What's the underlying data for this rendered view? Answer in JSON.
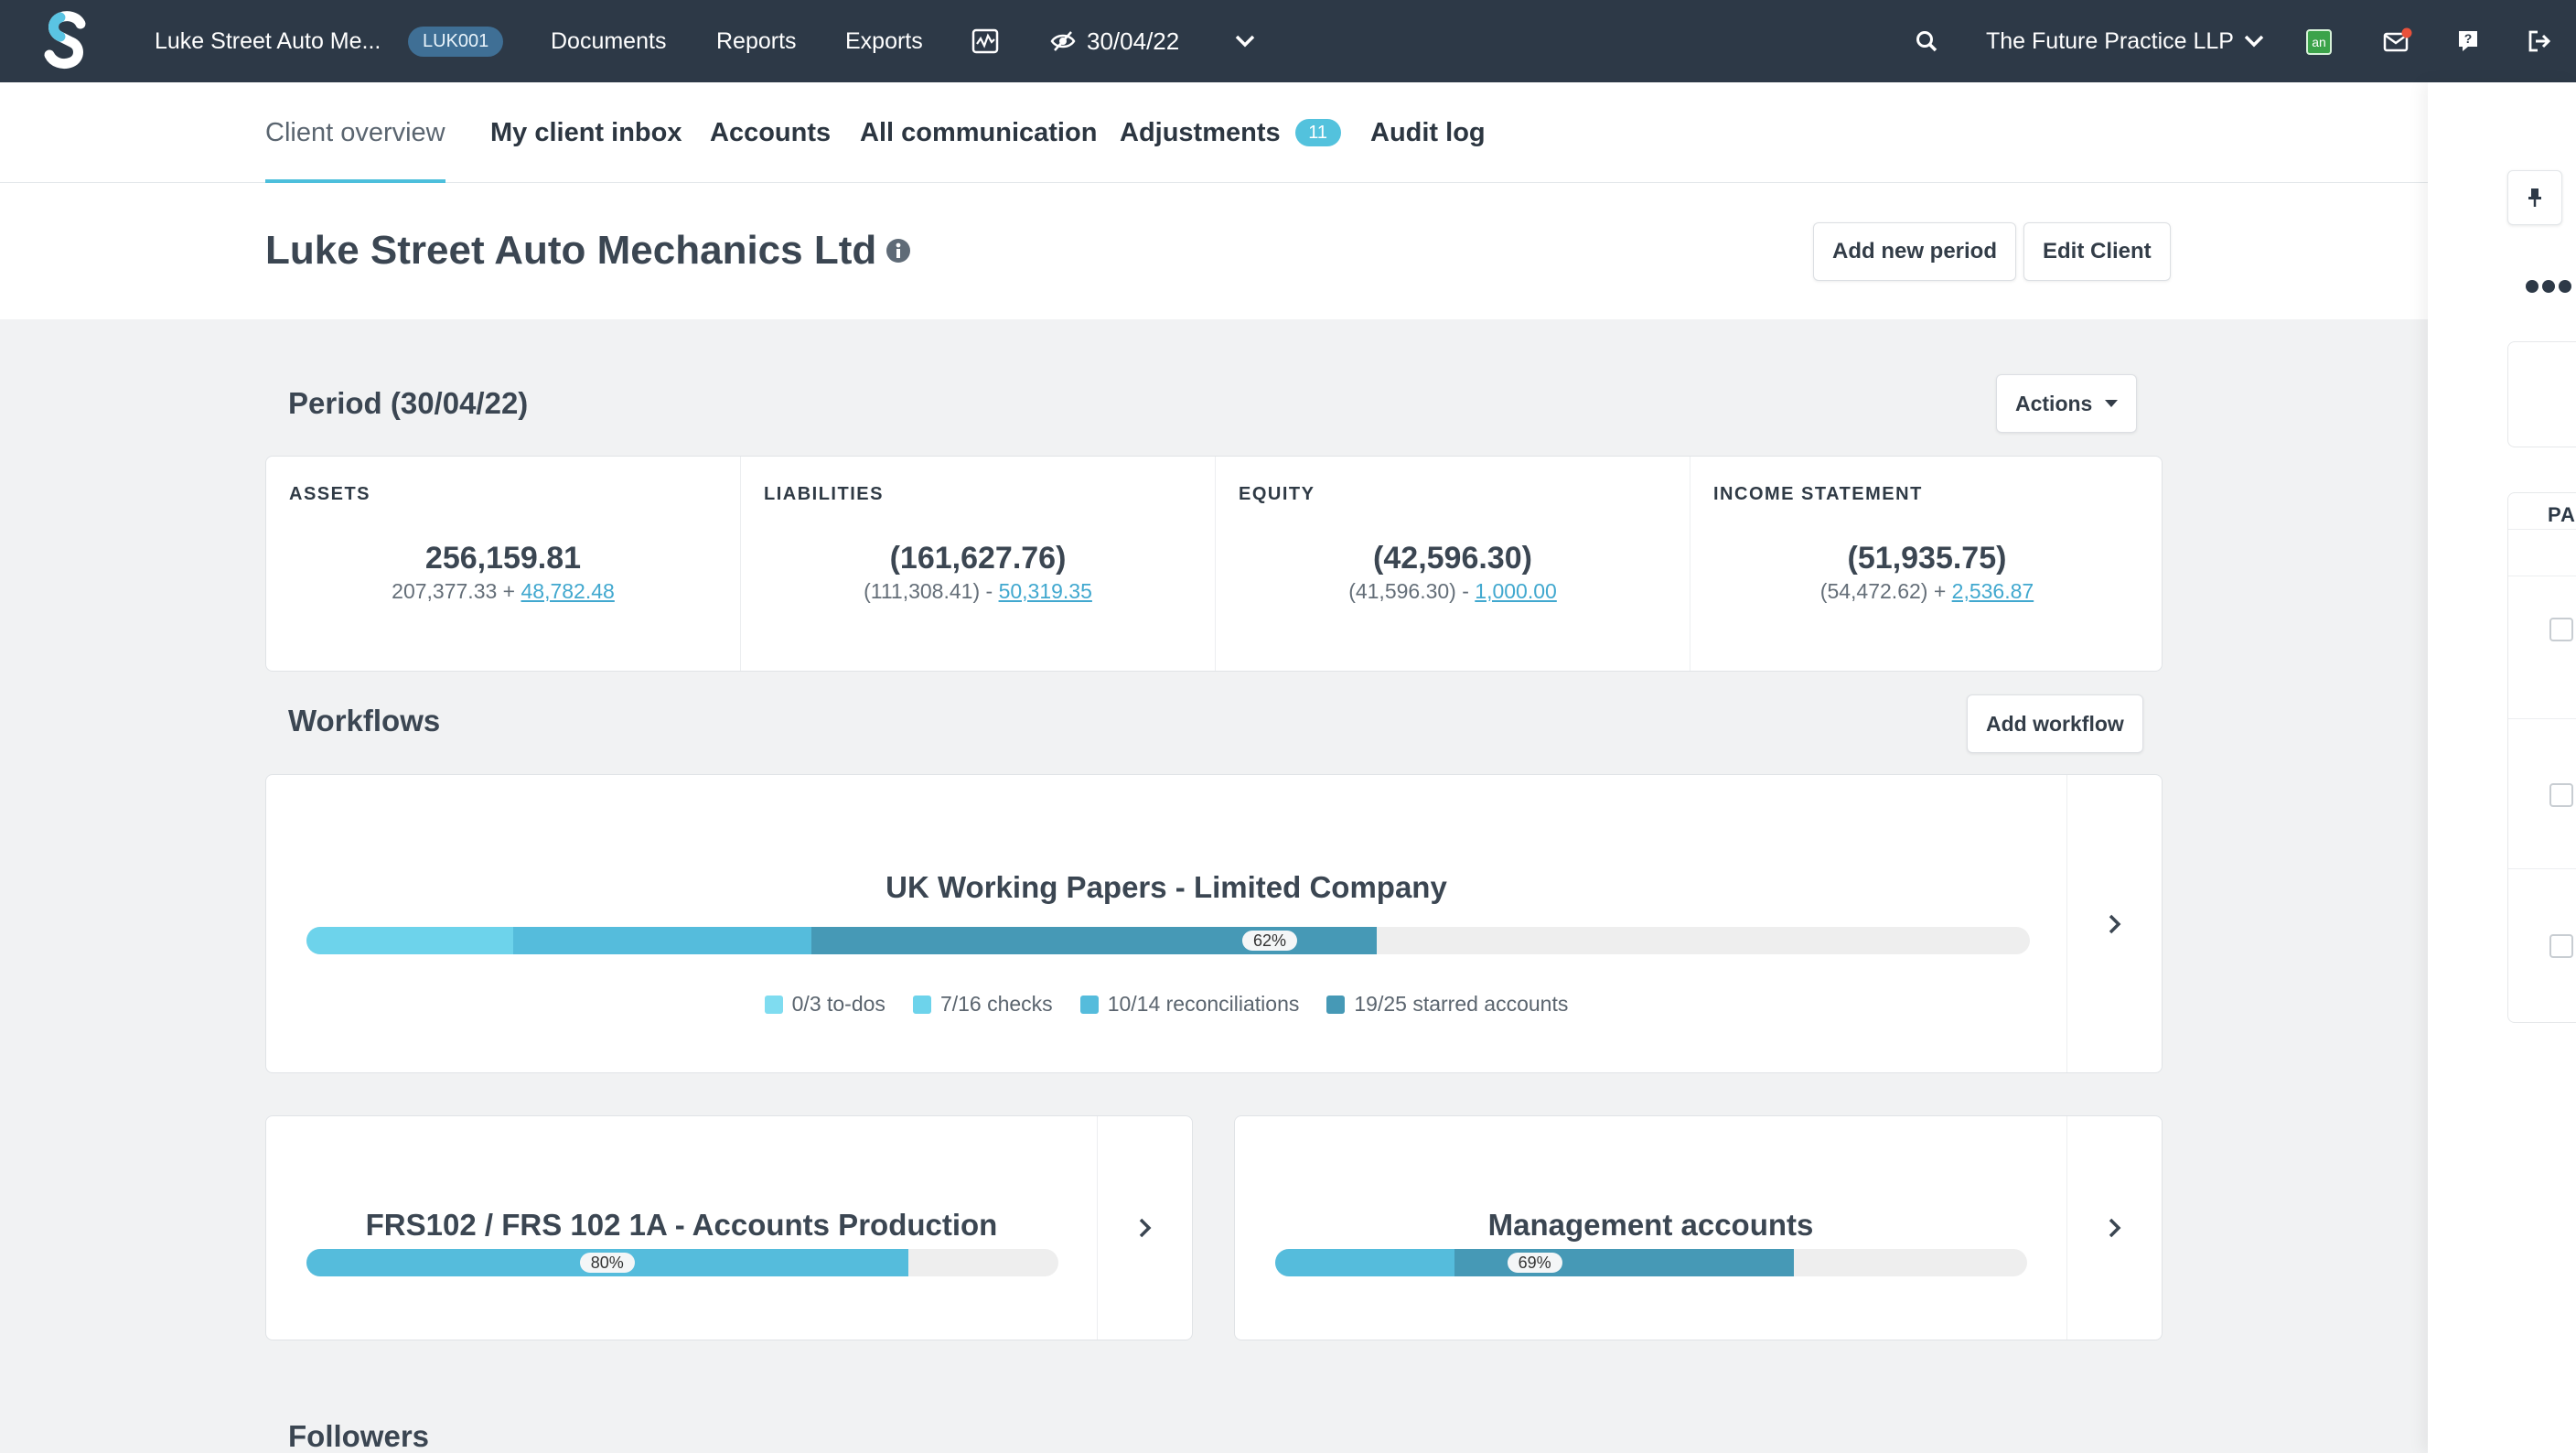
{
  "topbar": {
    "client_name": "Luke Street Auto Me...",
    "client_code": "LUK001",
    "nav": [
      "Documents",
      "Reports",
      "Exports"
    ],
    "period": "30/04/22",
    "practice": "The Future Practice LLP",
    "app_badge": "an",
    "icons": [
      "activity-icon",
      "eye-slash-icon",
      "chevron-down-icon",
      "search-icon",
      "mail-icon",
      "help-icon",
      "logout-icon"
    ],
    "colors": {
      "bg": "#2d3947",
      "notification": "#e8513b"
    }
  },
  "tabs": [
    {
      "label": "Client overview",
      "active": true
    },
    {
      "label": "My client inbox"
    },
    {
      "label": "Accounts"
    },
    {
      "label": "All communication"
    },
    {
      "label": "Adjustments",
      "count": "11"
    },
    {
      "label": "Audit log"
    }
  ],
  "header": {
    "title": "Luke Street Auto Mechanics Ltd",
    "add_period": "Add new period",
    "edit_client": "Edit Client"
  },
  "period": {
    "title": "Period (30/04/22)",
    "actions": "Actions",
    "stats": [
      {
        "label": "ASSETS",
        "value": "256,159.81",
        "base": "207,377.33 +",
        "adj": "48,782.48"
      },
      {
        "label": "LIABILITIES",
        "value": "(161,627.76)",
        "base": "(111,308.41) -",
        "adj": "50,319.35"
      },
      {
        "label": "EQUITY",
        "value": "(42,596.30)",
        "base": "(41,596.30) -",
        "adj": "1,000.00"
      },
      {
        "label": "INCOME STATEMENT",
        "value": "(51,935.75)",
        "base": "(54,472.62) +",
        "adj": "2,536.87"
      }
    ]
  },
  "workflows": {
    "title": "Workflows",
    "add_label": "Add workflow",
    "main": {
      "title": "UK Working Papers - Limited Company",
      "percent_label": "62%",
      "segments": [
        {
          "fraction": 0.12,
          "color": "#6dd3eb"
        },
        {
          "fraction": 0.173,
          "color": "#55bcdc"
        },
        {
          "fraction": 0.328,
          "color": "#4699b6"
        }
      ],
      "legend": [
        {
          "label": "0/3 to-dos",
          "color": "#7fdcf0"
        },
        {
          "label": "7/16 checks",
          "color": "#6dd3eb"
        },
        {
          "label": "10/14 reconciliations",
          "color": "#55bcdc"
        },
        {
          "label": "19/25 starred accounts",
          "color": "#4699b6"
        }
      ]
    },
    "small": [
      {
        "title": "FRS102 / FRS 102 1A - Accounts Production",
        "percent_label": "80%",
        "segments": [
          {
            "fraction": 0.8,
            "color": "#55bcdc"
          }
        ]
      },
      {
        "title": "Management accounts",
        "percent_label": "69%",
        "segments": [
          {
            "fraction": 0.238,
            "color": "#55bcdc"
          },
          {
            "fraction": 0.452,
            "color": "#4699b6"
          }
        ]
      }
    ]
  },
  "followers": {
    "title": "Followers"
  },
  "right_panel": {
    "label": "PA"
  }
}
